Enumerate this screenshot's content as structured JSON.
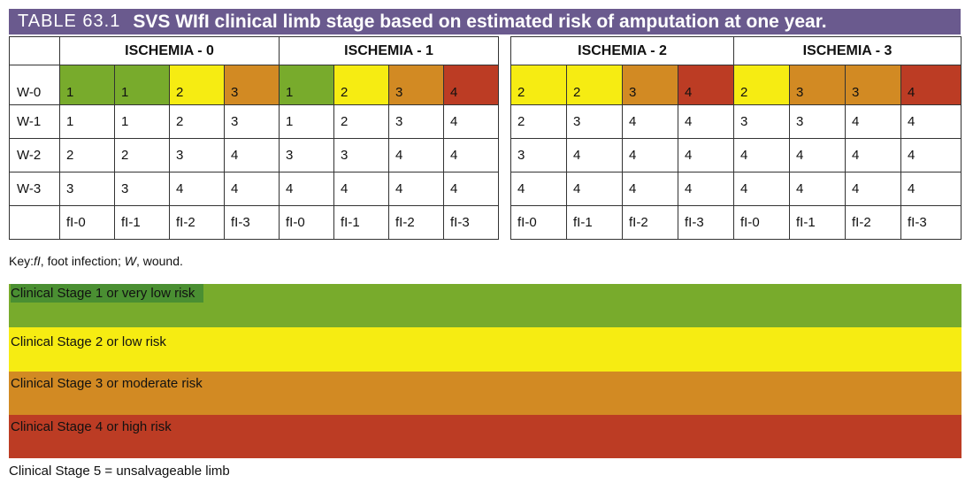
{
  "title": {
    "label": "TABLE 63.1",
    "text": "SVS WIfI clinical limb stage based on estimated risk of amputation at one year."
  },
  "groups": [
    "ISCHEMIA - 0",
    "ISCHEMIA - 1",
    "ISCHEMIA - 2",
    "ISCHEMIA - 3"
  ],
  "row_labels": [
    "W-0",
    "W-1",
    "W-2",
    "W-3"
  ],
  "fi_labels": [
    "fI-0",
    "fI-1",
    "fI-2",
    "fI-3"
  ],
  "cells": [
    [
      "1",
      "1",
      "2",
      "3",
      "1",
      "2",
      "3",
      "4",
      "2",
      "2",
      "3",
      "4",
      "2",
      "3",
      "3",
      "4"
    ],
    [
      "1",
      "1",
      "2",
      "3",
      "1",
      "2",
      "3",
      "4",
      "2",
      "3",
      "4",
      "4",
      "3",
      "3",
      "4",
      "4"
    ],
    [
      "2",
      "2",
      "3",
      "4",
      "3",
      "3",
      "4",
      "4",
      "3",
      "4",
      "4",
      "4",
      "4",
      "4",
      "4",
      "4"
    ],
    [
      "3",
      "3",
      "4",
      "4",
      "4",
      "4",
      "4",
      "4",
      "4",
      "4",
      "4",
      "4",
      "4",
      "4",
      "4",
      "4"
    ]
  ],
  "key_note": {
    "prefix": "Key:",
    "fi_abbr": "fI",
    "fi_def": ", foot infection; ",
    "w_abbr": "W",
    "w_def": ", wound."
  },
  "stages": [
    {
      "label": "Clinical Stage 1 or very low risk",
      "color": "#78ab2c"
    },
    {
      "label": "Clinical Stage 2 or low risk",
      "color": "#f6ec12"
    },
    {
      "label": "Clinical Stage 3 or moderate risk",
      "color": "#d28a23"
    },
    {
      "label": "Clinical Stage 4 or high risk",
      "color": "#bc3c24"
    }
  ],
  "stage5": "Clinical Stage 5 = unsalvageable limb"
}
